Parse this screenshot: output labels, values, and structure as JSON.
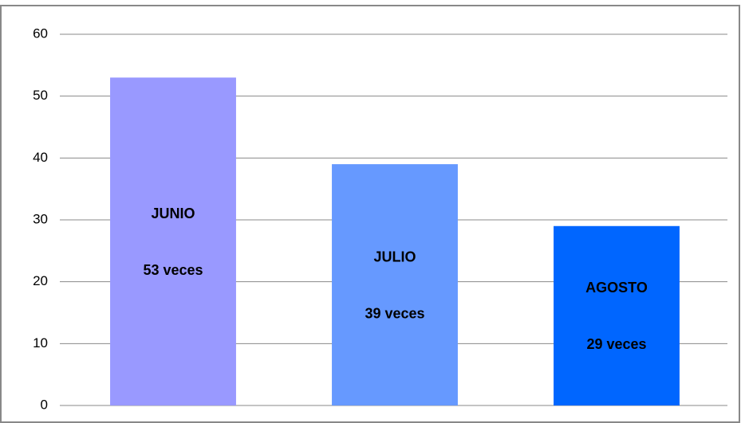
{
  "chart_data": {
    "type": "bar",
    "categories": [
      "JUNIO",
      "JULIO",
      "AGOSTO"
    ],
    "values": [
      53,
      39,
      29
    ],
    "value_labels": [
      "53 veces",
      "39 veces",
      "29 veces"
    ],
    "colors": [
      "#9999ff",
      "#6699ff",
      "#0066ff"
    ],
    "ylim": [
      0,
      60
    ],
    "yticks": [
      0,
      10,
      20,
      30,
      40,
      50,
      60
    ],
    "grid": true
  }
}
